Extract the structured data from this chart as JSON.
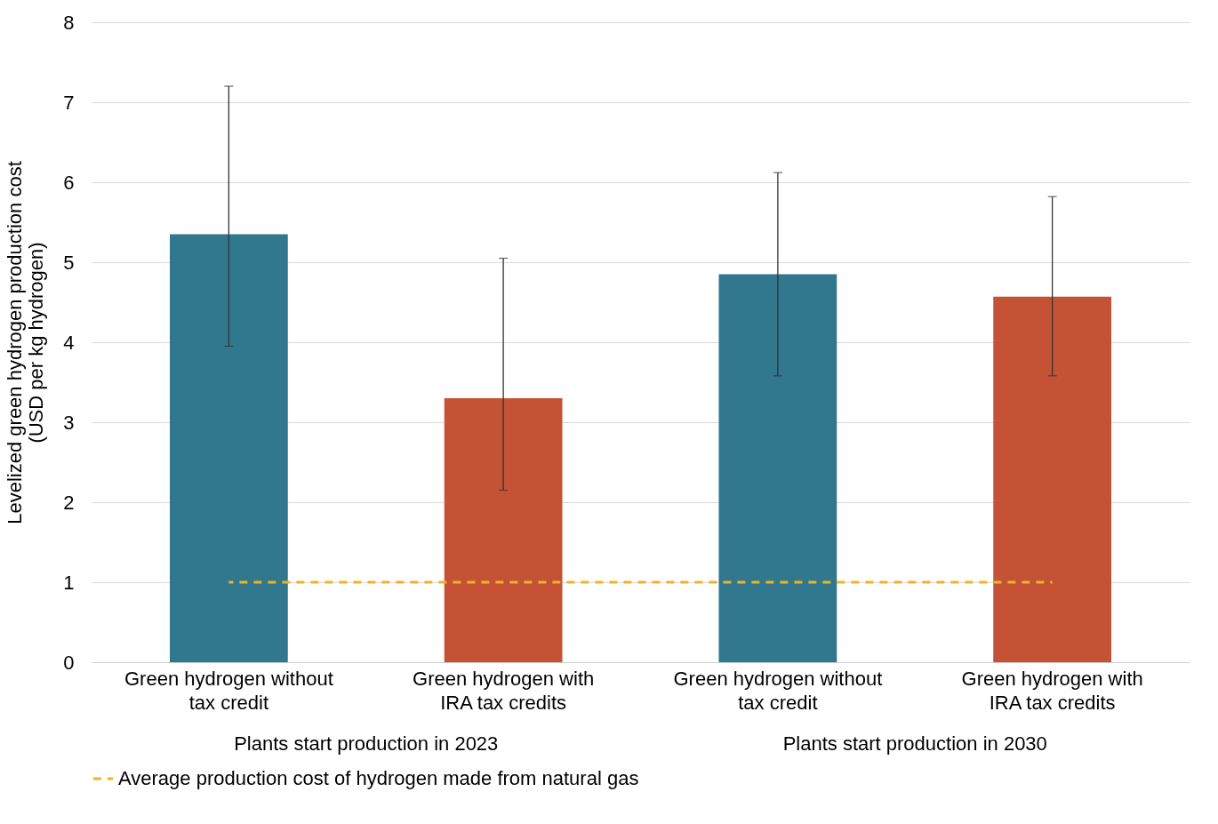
{
  "chart_data": {
    "type": "bar",
    "ylabel": "Levelized green hydrogen production cost\n(USD per kg hydrogen)",
    "categories": [
      "Green hydrogen without tax credit",
      "Green hydrogen with IRA tax credits",
      "Green hydrogen without tax credit",
      "Green hydrogen with IRA tax credits"
    ],
    "series": [
      {
        "colors": [
          "#31788f",
          "#c45235",
          "#31788f",
          "#c45235"
        ],
        "values": [
          5.35,
          3.3,
          4.85,
          4.57
        ],
        "errors": [
          [
            3.95,
            7.2
          ],
          [
            2.15,
            5.05
          ],
          [
            3.58,
            6.12
          ],
          [
            3.58,
            5.82
          ]
        ]
      },
      {
        "type": "line",
        "name": "Average production cost of hydrogen made from natural gas",
        "color": "#f0b323",
        "line_style": "dashed",
        "values": [
          1,
          1,
          1,
          1
        ]
      }
    ],
    "annotations": [
      "Plants start production in 2023",
      "Plants start production in 2030"
    ],
    "ylim": [
      0,
      8
    ],
    "yticks": [
      0,
      1,
      2,
      3,
      4,
      5,
      6,
      7,
      8
    ],
    "grid": "y",
    "legend": "bottom"
  }
}
